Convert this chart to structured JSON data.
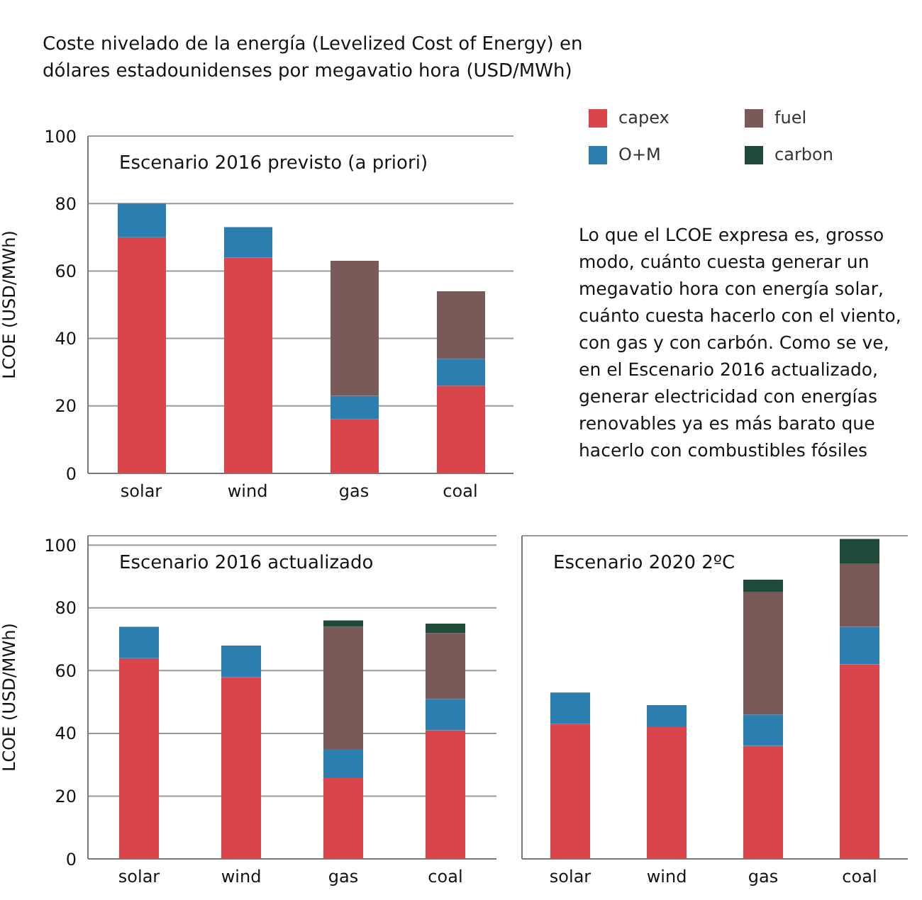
{
  "chart_data": [
    {
      "type": "bar",
      "title": "Coste nivelado de la energía (Levelized Cost of Energy) en dólares estadounidenses por megavatio hora (USD/MWh)",
      "subtitle": "Escenario 2016 previsto (a priori)",
      "ylabel": "LCOE (USD/MWh)",
      "categories": [
        "solar",
        "wind",
        "gas",
        "coal"
      ],
      "stacked": true,
      "ylim": [
        0,
        100
      ],
      "yticks": [
        0,
        20,
        40,
        60,
        80,
        100
      ],
      "grid": "y",
      "legend": "top right",
      "annotations": [
        "Lo que el LCOE expresa es, grosso modo, cuánto cuesta generar un megavatio hora con energía solar, cuánto cuesta hacerlo con el viento, con gas y con carbón. Como se ve, en el Escenario 2016 actualizado, generar electricidad con energías renovables ya es más barato que hacerlo con combustibles fósiles"
      ],
      "series": [
        {
          "name": "capex",
          "color": "#d9454b",
          "values": [
            70,
            64,
            16,
            26
          ]
        },
        {
          "name": "O+M",
          "color": "#2a7fb0",
          "values": [
            10,
            9,
            7,
            8
          ]
        },
        {
          "name": "fuel",
          "color": "#7a5a58",
          "values": [
            null,
            null,
            40,
            20
          ]
        },
        {
          "name": "carbon",
          "color": "#1f4a3a",
          "values": [
            null,
            null,
            null,
            null
          ]
        }
      ]
    },
    {
      "type": "bar",
      "subtitle": "Escenario 2016 actualizado",
      "ylabel": "LCOE (USD/MWh)",
      "categories": [
        "solar",
        "wind",
        "gas",
        "coal"
      ],
      "stacked": true,
      "ylim": [
        0,
        103
      ],
      "yticks": [
        0,
        20,
        40,
        60,
        80,
        100
      ],
      "grid": "y",
      "series": [
        {
          "color": "#d9454b",
          "values": [
            64,
            58,
            26,
            41
          ]
        },
        {
          "color": "#2a7fb0",
          "values": [
            10,
            10,
            9,
            10
          ]
        },
        {
          "color": "#7a5a58",
          "values": [
            null,
            null,
            39,
            21
          ]
        },
        {
          "color": "#1f4a3a",
          "values": [
            null,
            null,
            2,
            3
          ]
        }
      ]
    },
    {
      "type": "bar",
      "subtitle": "Escenario 2020 2ºC",
      "categories": [
        "solar",
        "wind",
        "gas",
        "coal"
      ],
      "stacked": true,
      "ylim": [
        0,
        103
      ],
      "yticks": [
        0,
        20,
        40,
        60,
        80,
        100
      ],
      "grid": "y",
      "tick_labels": "x",
      "series": [
        {
          "color": "#d9454b",
          "values": [
            43,
            42,
            36,
            62
          ]
        },
        {
          "color": "#2a7fb0",
          "values": [
            10,
            7,
            10,
            12
          ]
        },
        {
          "color": "#7a5a58",
          "values": [
            null,
            null,
            39,
            20
          ]
        },
        {
          "color": "#1f4a3a",
          "values": [
            null,
            null,
            4,
            8
          ]
        }
      ]
    }
  ]
}
